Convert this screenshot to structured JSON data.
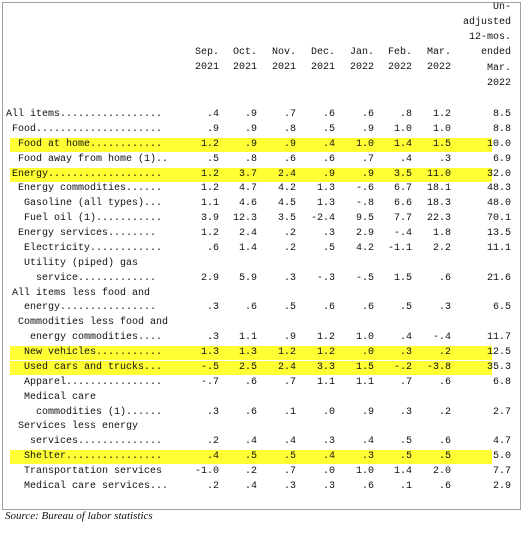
{
  "table": {
    "highlight_color": "#ffff33",
    "headers": [
      [
        "Sep.",
        "2021"
      ],
      [
        "Oct.",
        "2021"
      ],
      [
        "Nov.",
        "2021"
      ],
      [
        "Dec.",
        "2021"
      ],
      [
        "Jan.",
        "2022"
      ],
      [
        "Feb.",
        "2022"
      ],
      [
        "Mar.",
        "2022"
      ],
      [
        "Un-",
        "adjusted",
        "12-mos.",
        "ended",
        "Mar.",
        "2022"
      ]
    ],
    "rows": [
      {
        "label": [
          "All items................."
        ],
        "values": [
          ".4",
          ".9",
          ".7",
          ".6",
          ".6",
          ".8",
          "1.2",
          "8.5"
        ]
      },
      {
        "label": [
          "Food....................."
        ],
        "values": [
          ".9",
          ".9",
          ".8",
          ".5",
          ".9",
          "1.0",
          "1.0",
          "8.8"
        ]
      },
      {
        "label": [
          "Food at home............"
        ],
        "values": [
          "1.2",
          ".9",
          ".9",
          ".4",
          "1.0",
          "1.4",
          "1.5",
          "10.0"
        ],
        "highlighted": true
      },
      {
        "label": [
          "Food away from home (1).."
        ],
        "values": [
          ".5",
          ".8",
          ".6",
          ".6",
          ".7",
          ".4",
          ".3",
          "6.9"
        ]
      },
      {
        "label": [
          "Energy..................."
        ],
        "values": [
          "1.2",
          "3.7",
          "2.4",
          ".9",
          ".9",
          "3.5",
          "11.0",
          "32.0"
        ],
        "highlighted": true
      },
      {
        "label": [
          "Energy commodities......"
        ],
        "values": [
          "1.2",
          "4.7",
          "4.2",
          "1.3",
          "-.6",
          "6.7",
          "18.1",
          "48.3"
        ]
      },
      {
        "label": [
          "Gasoline (all types)..."
        ],
        "values": [
          "1.1",
          "4.6",
          "4.5",
          "1.3",
          "-.8",
          "6.6",
          "18.3",
          "48.0"
        ]
      },
      {
        "label": [
          "Fuel oil (1)..........."
        ],
        "values": [
          "3.9",
          "12.3",
          "3.5",
          "-2.4",
          "9.5",
          "7.7",
          "22.3",
          "70.1"
        ]
      },
      {
        "label": [
          "Energy services........"
        ],
        "values": [
          "1.2",
          "2.4",
          ".2",
          ".3",
          "2.9",
          "-.4",
          "1.8",
          "13.5"
        ]
      },
      {
        "label": [
          "Electricity............"
        ],
        "values": [
          ".6",
          "1.4",
          ".2",
          ".5",
          "4.2",
          "-1.1",
          "2.2",
          "11.1"
        ]
      },
      {
        "label": [
          "Utility (piped) gas",
          "service............."
        ],
        "values": [
          "2.9",
          "5.9",
          ".3",
          "-.3",
          "-.5",
          "1.5",
          ".6",
          "21.6"
        ]
      },
      {
        "label": [
          "All items less food and",
          "energy................"
        ],
        "values": [
          ".3",
          ".6",
          ".5",
          ".6",
          ".6",
          ".5",
          ".3",
          "6.5"
        ]
      },
      {
        "label": [
          "Commodities less food and",
          "energy commodities...."
        ],
        "values": [
          ".3",
          "1.1",
          ".9",
          "1.2",
          "1.0",
          ".4",
          "-.4",
          "11.7"
        ]
      },
      {
        "label": [
          "New vehicles..........."
        ],
        "values": [
          "1.3",
          "1.3",
          "1.2",
          "1.2",
          ".0",
          ".3",
          ".2",
          "12.5"
        ],
        "highlighted": true
      },
      {
        "label": [
          "Used cars and trucks..."
        ],
        "values": [
          "-.5",
          "2.5",
          "2.4",
          "3.3",
          "1.5",
          "-.2",
          "-3.8",
          "35.3"
        ],
        "highlighted": true
      },
      {
        "label": [
          "Apparel................"
        ],
        "values": [
          "-.7",
          ".6",
          ".7",
          "1.1",
          "1.1",
          ".7",
          ".6",
          "6.8"
        ]
      },
      {
        "label": [
          "Medical care",
          "commodities (1)......"
        ],
        "values": [
          ".3",
          ".6",
          ".1",
          ".0",
          ".9",
          ".3",
          ".2",
          "2.7"
        ]
      },
      {
        "label": [
          "Services less energy",
          "services.............."
        ],
        "values": [
          ".2",
          ".4",
          ".4",
          ".3",
          ".4",
          ".5",
          ".6",
          "4.7"
        ]
      },
      {
        "label": [
          "Shelter................"
        ],
        "values": [
          ".4",
          ".5",
          ".5",
          ".4",
          ".3",
          ".5",
          ".5",
          "5.0"
        ],
        "highlighted": true
      },
      {
        "label": [
          "Transportation services"
        ],
        "values": [
          "-1.0",
          ".2",
          ".7",
          ".0",
          "1.0",
          "1.4",
          "2.0",
          "7.7"
        ]
      },
      {
        "label": [
          "Medical care services..."
        ],
        "values": [
          ".2",
          ".4",
          ".3",
          ".3",
          ".6",
          ".1",
          ".6",
          "2.9"
        ]
      }
    ]
  },
  "source": "Source: Bureau of labor statistics"
}
